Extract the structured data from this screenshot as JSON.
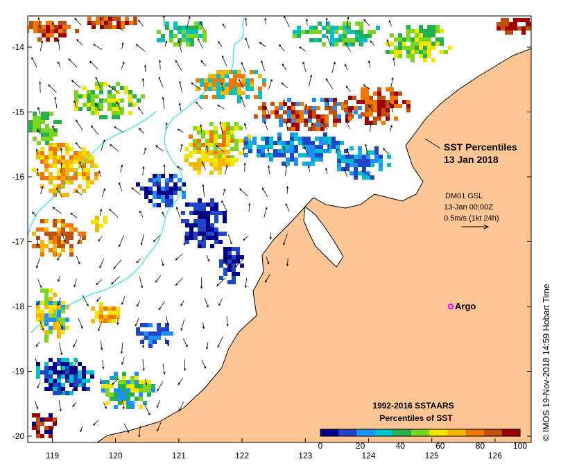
{
  "map": {
    "title_line1": "SST Percentiles",
    "title_line2": "13 Jan 2018",
    "current_source": "DM01 GSL",
    "current_time": "13-Jan 00:00Z",
    "current_scale": "0.5m/s (1kt 24h)",
    "argo_label": "Argo",
    "argo_position": {
      "lon": 125.3,
      "lat": -18.0
    },
    "extent": {
      "lon": [
        118.6,
        126.7
      ],
      "lat": [
        -20.1,
        -13.6
      ]
    },
    "lon_ticks": [
      "119",
      "120",
      "121",
      "122",
      "123",
      "124",
      "125",
      "126"
    ],
    "lat_ticks": [
      "-14",
      "-15",
      "-16",
      "-17",
      "-18",
      "-19",
      "-20"
    ],
    "credit": "© IMOS 19-Nov-2018 14:59 Hobart Time"
  },
  "legend": {
    "title_line1": "1992-2016 SSTAARS",
    "title_line2": "Percentiles of SST",
    "ticks": [
      "0",
      "20",
      "40",
      "60",
      "80",
      "100"
    ],
    "colors": [
      "#00008b",
      "#1f45c9",
      "#1e90ff",
      "#00c0c8",
      "#22b14c",
      "#7cd61e",
      "#f2e600",
      "#f5b800",
      "#f07800",
      "#c05010",
      "#a00000"
    ]
  },
  "colors": {
    "land": "#fdc593",
    "contour": "#00e5ee",
    "argo": "#ff00ff",
    "ocean": "#ffffff"
  }
}
